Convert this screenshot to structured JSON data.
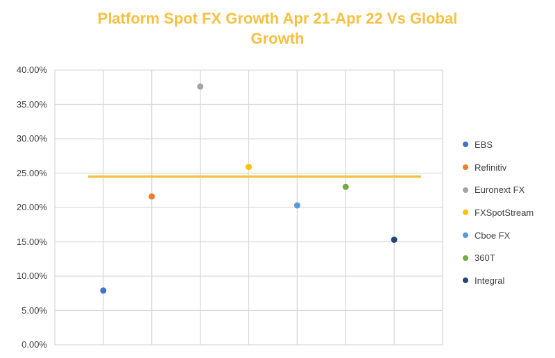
{
  "chart_data": {
    "type": "scatter",
    "title": "Platform Spot FX Growth Apr 21-Apr 22 Vs Global Growth",
    "title_lines": [
      "Platform Spot FX Growth Apr 21-Apr 22 Vs Global",
      "Growth"
    ],
    "xlabel": "",
    "ylabel": "",
    "ylim": [
      0,
      0.4
    ],
    "y_ticks": [
      "0.00%",
      "5.00%",
      "10.00%",
      "15.00%",
      "20.00%",
      "25.00%",
      "30.00%",
      "35.00%",
      "40.00%"
    ],
    "grid": true,
    "legend_position": "right",
    "series": [
      {
        "name": "EBS",
        "x": 1,
        "value": 0.079,
        "color": "#4472C4"
      },
      {
        "name": "Refinitiv",
        "x": 2,
        "value": 0.216,
        "color": "#ED7D31"
      },
      {
        "name": "Euronext FX",
        "x": 3,
        "value": 0.376,
        "color": "#A5A5A5"
      },
      {
        "name": "FXSpotStream",
        "x": 4,
        "value": 0.259,
        "color": "#FFC000"
      },
      {
        "name": "Cboe FX",
        "x": 5,
        "value": 0.203,
        "color": "#5B9BD5"
      },
      {
        "name": "360T",
        "x": 6,
        "value": 0.23,
        "color": "#70AD47"
      },
      {
        "name": "Integral",
        "x": 7,
        "value": 0.153,
        "color": "#264478"
      }
    ],
    "reference_line": {
      "name": "Global Growth",
      "value": 0.245,
      "color": "#F6C142"
    }
  }
}
